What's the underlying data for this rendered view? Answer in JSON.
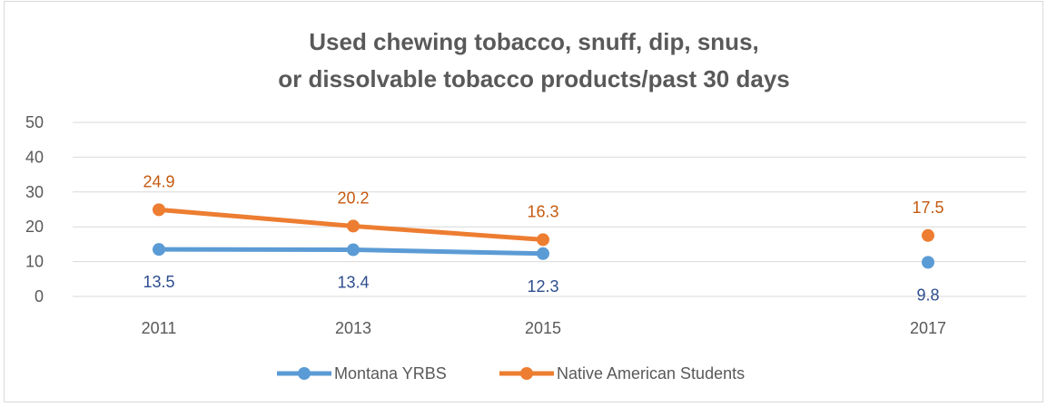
{
  "chart_data": {
    "type": "line",
    "title_lines": [
      "Used chewing tobacco, snuff, dip, snus,",
      "or dissolvable tobacco products/past 30 days"
    ],
    "categories": [
      "2011",
      "2013",
      "2015",
      "",
      "2017"
    ],
    "y_ticks": [
      "0",
      "10",
      "20",
      "30",
      "40",
      "50"
    ],
    "ylim": [
      0,
      50
    ],
    "grid": true,
    "legend_position": "bottom",
    "series": [
      {
        "name": "Montana YRBS",
        "color": "#5b9bd5",
        "label_color": "#2e4d8f",
        "values": [
          13.5,
          13.4,
          12.3,
          null,
          9.8
        ],
        "labels": [
          "13.5",
          "13.4",
          "12.3",
          "",
          "9.8"
        ]
      },
      {
        "name": "Native American Students",
        "color": "#ed7d31",
        "label_color": "#c55a11",
        "values": [
          24.9,
          20.2,
          16.3,
          null,
          17.5
        ],
        "labels": [
          "24.9",
          "20.2",
          "16.3",
          "",
          "17.5"
        ]
      }
    ]
  }
}
